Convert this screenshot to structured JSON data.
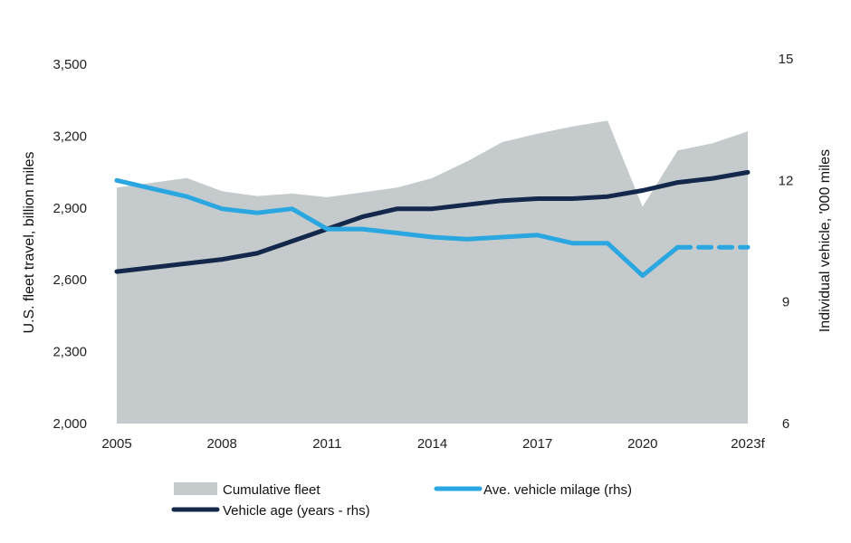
{
  "chart_data": {
    "type": "line",
    "x_categories": [
      "2005",
      "2006",
      "2007",
      "2008",
      "2009",
      "2010",
      "2011",
      "2012",
      "2013",
      "2014",
      "2015",
      "2016",
      "2017",
      "2018",
      "2019",
      "2020",
      "2021",
      "2022",
      "2023f"
    ],
    "x_tick_labels": [
      "2005",
      "2008",
      "2011",
      "2014",
      "2017",
      "2020",
      "2023f"
    ],
    "x_tick_positions": [
      "2005",
      "2008",
      "2011",
      "2014",
      "2017",
      "2020",
      "2023f"
    ],
    "y_left": {
      "label": "U.S. fleet travel, billion miles",
      "ticks": [
        2000,
        2300,
        2600,
        2900,
        3200,
        3500
      ],
      "tick_labels": [
        "2,000",
        "2,300",
        "2,600",
        "2,900",
        "3,200",
        "3,500"
      ],
      "range": [
        2000,
        3500
      ]
    },
    "y_right": {
      "label": "Individual vehicle, '000 miles",
      "ticks": [
        6,
        9,
        12,
        15
      ],
      "tick_labels": [
        "6",
        "9",
        "12",
        "15"
      ],
      "range": [
        6,
        15
      ]
    },
    "series": [
      {
        "name": "Cumulative fleet",
        "kind": "area",
        "axis": "left",
        "color": "#c5cacd",
        "values": [
          2985,
          3005,
          3025,
          2970,
          2950,
          2960,
          2945,
          2965,
          2985,
          3025,
          3095,
          3175,
          3210,
          3240,
          3265,
          2905,
          3140,
          3170,
          3220
        ]
      },
      {
        "name": "Ave. vehicle milage (rhs)",
        "kind": "line",
        "axis": "right",
        "color": "#2aa7e0",
        "values": [
          12.0,
          11.8,
          11.6,
          11.3,
          11.2,
          11.3,
          10.8,
          10.8,
          10.7,
          10.6,
          10.55,
          10.6,
          10.65,
          10.45,
          10.45,
          9.65,
          10.35,
          10.35,
          10.35
        ],
        "dashed_from": "2021"
      },
      {
        "name": "Vehicle age (years - rhs)",
        "kind": "line",
        "axis": "right",
        "color": "#13284a",
        "values": [
          9.75,
          9.85,
          9.95,
          10.05,
          10.2,
          10.5,
          10.8,
          11.1,
          11.3,
          11.3,
          11.4,
          11.5,
          11.55,
          11.55,
          11.6,
          11.75,
          11.95,
          12.05,
          12.2
        ]
      }
    ],
    "legend": [
      {
        "label": "Cumulative fleet",
        "swatch": "area",
        "color": "#c5cacd"
      },
      {
        "label": "Ave. vehicle milage (rhs)",
        "swatch": "line",
        "color": "#2aa7e0"
      },
      {
        "label": "Vehicle age (years - rhs)",
        "swatch": "line",
        "color": "#13284a"
      }
    ],
    "legend_position": "bottom",
    "grid": false
  }
}
